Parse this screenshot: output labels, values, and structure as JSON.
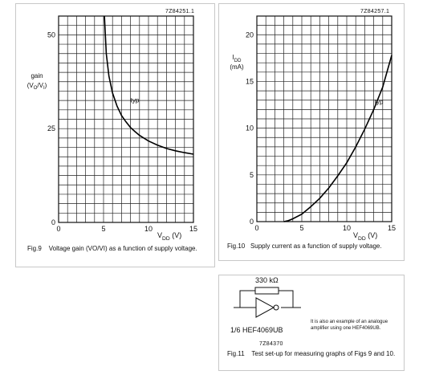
{
  "chart_data": [
    {
      "type": "line",
      "figure": "Fig.9",
      "ref_code": "7Z84251.1",
      "ylabel_main": "gain",
      "ylabel_unit": "(VO/VI)",
      "xlabel": "VDD (V)",
      "xlim": [
        0,
        15
      ],
      "ylim": [
        0,
        55
      ],
      "x_ticks": [
        0,
        5,
        10,
        15
      ],
      "y_ticks": [
        0,
        25,
        50
      ],
      "grid": true,
      "caption_fig": "Fig.9",
      "caption_text": "Voltage gain (VO/VI) as a function of supply voltage.",
      "series": [
        {
          "name": "typ",
          "x": [
            5.1,
            5.3,
            5.6,
            6,
            6.5,
            7,
            7.5,
            8,
            8.5,
            9,
            10,
            11,
            12,
            13,
            14,
            15
          ],
          "y": [
            55,
            45,
            39,
            34.5,
            31,
            28.5,
            26.8,
            25.3,
            24.2,
            23.2,
            21.7,
            20.6,
            19.7,
            19.1,
            18.6,
            18.2
          ]
        }
      ]
    },
    {
      "type": "line",
      "figure": "Fig.10",
      "ref_code": "7Z84257.1",
      "ylabel_main": "IDD",
      "ylabel_unit": "(mA)",
      "xlabel": "VDD (V)",
      "xlim": [
        0,
        15
      ],
      "ylim": [
        0,
        22
      ],
      "x_ticks": [
        0,
        5,
        10,
        15
      ],
      "y_ticks": [
        0,
        5,
        10,
        15,
        20
      ],
      "grid": true,
      "caption_fig": "Fig.10",
      "caption_text": "Supply current as a function of supply voltage.",
      "series": [
        {
          "name": "typ",
          "x": [
            3,
            3.5,
            4,
            5,
            6,
            7,
            8,
            9,
            10,
            11,
            12,
            13,
            14,
            15
          ],
          "y": [
            0,
            0.1,
            0.3,
            0.8,
            1.6,
            2.5,
            3.6,
            4.9,
            6.3,
            8,
            9.9,
            12,
            14.4,
            17.8
          ]
        }
      ]
    }
  ],
  "fig11": {
    "resistor_label": "330 kΩ",
    "device_label": "1/6 HEF4069UB",
    "ref_code": "7Z84370",
    "note": "It is also an example of an analogue amplifier using one HEF4069UB.",
    "caption_fig": "Fig.11",
    "caption_text": "Test set-up for measuring graphs of Figs 9 and 10."
  }
}
